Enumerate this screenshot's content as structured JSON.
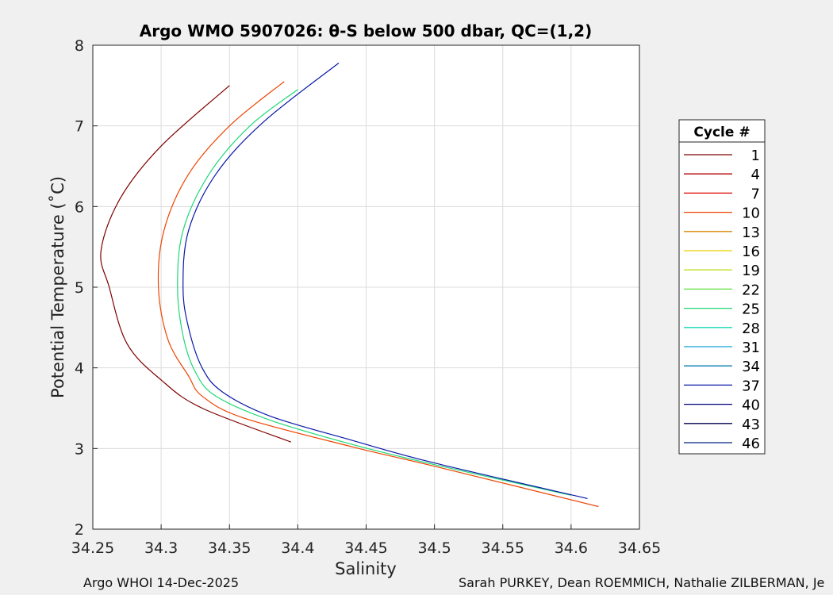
{
  "chart_data": {
    "type": "line",
    "title": "Argo WMO 5907026: θ-S below 500 dbar,  QC=(1,2)",
    "xlabel": "Salinity",
    "ylabel": "Potential Temperature (˚C)",
    "xlim": [
      34.25,
      34.65
    ],
    "ylim": [
      2,
      8
    ],
    "xticks": [
      "34.25",
      "34.3",
      "34.35",
      "34.4",
      "34.45",
      "34.5",
      "34.55",
      "34.6",
      "34.65"
    ],
    "yticks": [
      "2",
      "3",
      "4",
      "5",
      "6",
      "7",
      "8"
    ],
    "grid": true,
    "legend": {
      "title": "Cycle #",
      "position": "right",
      "entries": [
        "1",
        "4",
        "7",
        "10",
        "13",
        "16",
        "19",
        "22",
        "25",
        "28",
        "31",
        "34",
        "37",
        "40",
        "43",
        "46"
      ],
      "colors": [
        "#7f0000",
        "#b00000",
        "#e00000",
        "#ee4400",
        "#d88a00",
        "#e8d000",
        "#bce020",
        "#5ee040",
        "#1ed878",
        "#10d8b0",
        "#10a8d8",
        "#0a7cb0",
        "#0818a8",
        "#000080",
        "#000050",
        "#002080"
      ]
    },
    "series": [
      {
        "values": [
          {
            "x": 34.395,
            "y": 3.08
          },
          {
            "x": 34.33,
            "y": 3.5
          },
          {
            "x": 34.3,
            "y": 3.85
          },
          {
            "x": 34.275,
            "y": 4.3
          },
          {
            "x": 34.262,
            "y": 5.0
          },
          {
            "x": 34.256,
            "y": 5.45
          },
          {
            "x": 34.27,
            "y": 6.1
          },
          {
            "x": 34.3,
            "y": 6.75
          },
          {
            "x": 34.35,
            "y": 7.5
          }
        ]
      },
      {
        "values": [
          {
            "x": 34.62,
            "y": 2.28
          },
          {
            "x": 34.5,
            "y": 2.78
          },
          {
            "x": 34.44,
            "y": 3.02
          },
          {
            "x": 34.36,
            "y": 3.38
          },
          {
            "x": 34.33,
            "y": 3.65
          },
          {
            "x": 34.32,
            "y": 3.9
          },
          {
            "x": 34.305,
            "y": 4.35
          },
          {
            "x": 34.298,
            "y": 5.0
          },
          {
            "x": 34.302,
            "y": 5.7
          },
          {
            "x": 34.32,
            "y": 6.4
          },
          {
            "x": 34.35,
            "y": 7.0
          },
          {
            "x": 34.39,
            "y": 7.55
          }
        ]
      },
      {
        "values": [
          {
            "x": 34.6,
            "y": 2.42
          },
          {
            "x": 34.5,
            "y": 2.8
          },
          {
            "x": 34.44,
            "y": 3.05
          },
          {
            "x": 34.38,
            "y": 3.35
          },
          {
            "x": 34.34,
            "y": 3.65
          },
          {
            "x": 34.325,
            "y": 3.95
          },
          {
            "x": 34.316,
            "y": 4.4
          },
          {
            "x": 34.312,
            "y": 5.0
          },
          {
            "x": 34.316,
            "y": 5.7
          },
          {
            "x": 34.335,
            "y": 6.4
          },
          {
            "x": 34.365,
            "y": 7.0
          },
          {
            "x": 34.4,
            "y": 7.45
          }
        ]
      },
      {
        "values": [
          {
            "x": 34.612,
            "y": 2.38
          },
          {
            "x": 34.5,
            "y": 2.82
          },
          {
            "x": 34.44,
            "y": 3.1
          },
          {
            "x": 34.38,
            "y": 3.4
          },
          {
            "x": 34.345,
            "y": 3.7
          },
          {
            "x": 34.33,
            "y": 4.0
          },
          {
            "x": 34.32,
            "y": 4.5
          },
          {
            "x": 34.316,
            "y": 5.0
          },
          {
            "x": 34.32,
            "y": 5.7
          },
          {
            "x": 34.34,
            "y": 6.4
          },
          {
            "x": 34.375,
            "y": 7.05
          },
          {
            "x": 34.43,
            "y": 7.78
          }
        ]
      }
    ]
  },
  "footer": {
    "left": "Argo WHOI 14-Dec-2025",
    "right": "Sarah PURKEY, Dean ROEMMICH, Nathalie ZILBERMAN, Je"
  }
}
